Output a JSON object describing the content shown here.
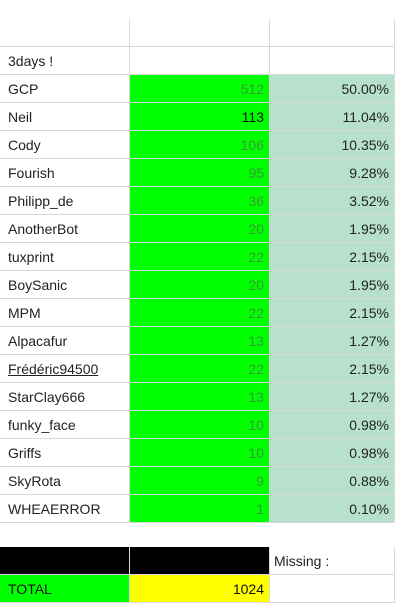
{
  "header": "3days !",
  "rows": [
    {
      "name": "GCP",
      "count": "512",
      "pct": "50.00%"
    },
    {
      "name": "Neil",
      "count": "113",
      "pct": "11.04%"
    },
    {
      "name": "Cody",
      "count": "106",
      "pct": "10.35%"
    },
    {
      "name": "Fourish",
      "count": "95",
      "pct": "9.28%"
    },
    {
      "name": "Philipp_de",
      "count": "36",
      "pct": "3.52%"
    },
    {
      "name": "AnotherBot",
      "count": "20",
      "pct": "1.95%"
    },
    {
      "name": "tuxprint",
      "count": "22",
      "pct": "2.15%"
    },
    {
      "name": "BoySanic",
      "count": "20",
      "pct": "1.95%"
    },
    {
      "name": "MPM",
      "count": "22",
      "pct": "2.15%"
    },
    {
      "name": "Alpacafur",
      "count": "13",
      "pct": "1.27%"
    },
    {
      "name": "Frédéric94500",
      "count": "22",
      "pct": "2.15%"
    },
    {
      "name": "StarClay666",
      "count": "13",
      "pct": "1.27%"
    },
    {
      "name": "funky_face",
      "count": "10",
      "pct": "0.98%"
    },
    {
      "name": "Griffs",
      "count": "10",
      "pct": "0.98%"
    },
    {
      "name": "SkyRota",
      "count": "9",
      "pct": "0.88%"
    },
    {
      "name": "WHEAERROR",
      "count": "1",
      "pct": "0.10%"
    }
  ],
  "missing_label": "Missing :",
  "total": {
    "label": "TOTAL",
    "value": "1024"
  },
  "colors": {
    "green": "#00ff00",
    "mint": "#b7e1cd",
    "yellow": "#ffff00",
    "black": "#000000"
  }
}
